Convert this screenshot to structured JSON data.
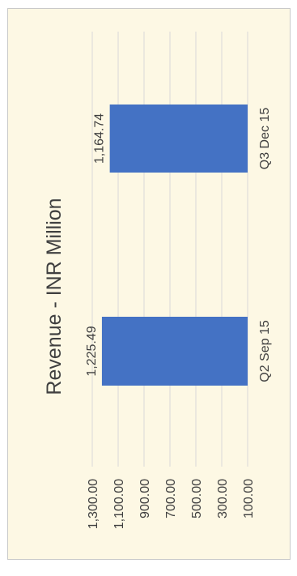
{
  "chart_data": {
    "type": "bar",
    "title": "Revenue - INR Million",
    "categories": [
      "Q2 Sep 15",
      "Q3 Dec 15"
    ],
    "values": [
      1225.49,
      1164.74
    ],
    "data_labels": [
      "1,225.49",
      "1,164.74"
    ],
    "value_axis": {
      "range": [
        100,
        1300
      ],
      "tick_values": [
        100,
        300,
        500,
        700,
        900,
        1100,
        1300
      ],
      "tick_labels": [
        "100.00",
        "300.00",
        "500.00",
        "700.00",
        "900.00",
        "1,100.00",
        "1,300.00"
      ]
    },
    "orientation": "rotated 90° counter-clockwise",
    "grid": true,
    "colors": {
      "bar": "#4472c4",
      "background": "#fdf8e4",
      "grid": "#d9d9d9",
      "text": "#404040"
    }
  }
}
